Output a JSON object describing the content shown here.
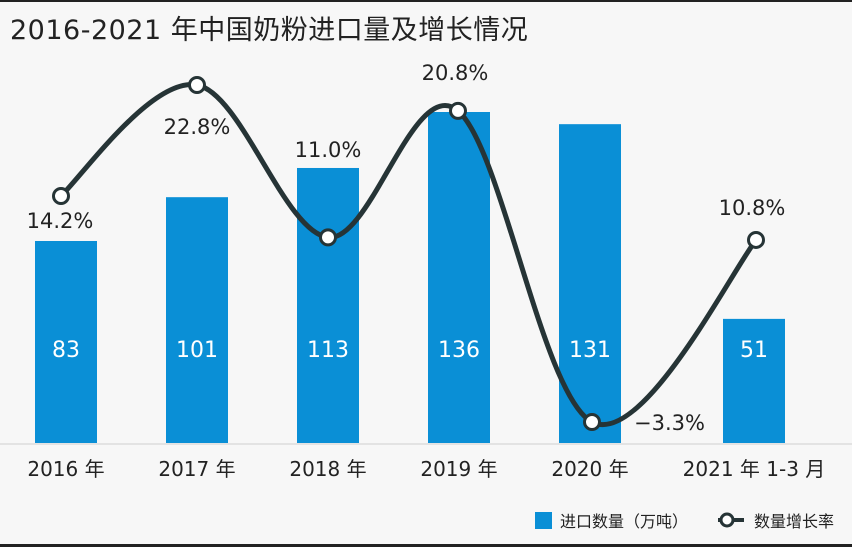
{
  "chart_data": {
    "type": "bar+line",
    "title": "2016-2021 年中国奶粉进口量及增长情况",
    "categories": [
      "2016 年",
      "2017 年",
      "2018 年",
      "2019 年",
      "2020 年",
      "2021 年 1-3 月"
    ],
    "series": [
      {
        "name": "进口数量（万吨）",
        "type": "bar",
        "values": [
          83,
          101,
          113,
          136,
          131,
          51
        ],
        "labels": [
          "83",
          "101",
          "113",
          "136",
          "131",
          "51"
        ],
        "color": "#0a8fd6"
      },
      {
        "name": "数量增长率",
        "type": "line",
        "values": [
          14.2,
          22.8,
          11.0,
          20.8,
          -3.3,
          10.8
        ],
        "labels": [
          "14.2%",
          "22.8%",
          "11.0%",
          "20.8%",
          "−3.3%",
          "10.8%"
        ],
        "color": "#263436"
      }
    ],
    "bar_ylim": [
      0,
      140
    ],
    "line_ylim": [
      -5,
      25
    ],
    "legend": {
      "position": "bottom-right",
      "bar_label": "进口数量（万吨）",
      "line_label": "数量增长率"
    }
  }
}
